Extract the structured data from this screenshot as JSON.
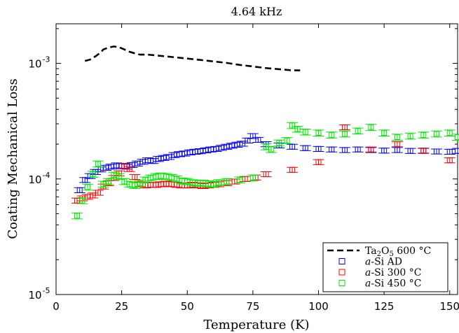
{
  "chart_data": {
    "type": "scatter",
    "title": "4.64 kHz",
    "xlabel": "Temperature (K)",
    "ylabel": "Coating Mechanical Loss",
    "xlim": [
      0,
      153
    ],
    "ylim": [
      1e-05,
      0.0022
    ],
    "yscale": "log",
    "grid": false,
    "legend_position": "bottom-right",
    "x_ticks": [
      0,
      25,
      50,
      75,
      100,
      125,
      150
    ],
    "x_tick_labels": [
      "0",
      "25",
      "50",
      "75",
      "100",
      "125",
      "150"
    ],
    "y_ticks": [
      1e-05,
      0.0001,
      0.001
    ],
    "y_tick_bases": [
      "10",
      "10",
      "10"
    ],
    "y_tick_exps": [
      "-5",
      "-4",
      "-3"
    ],
    "series": [
      {
        "name": "Ta2O5 600 °C",
        "name_parts": [
          "Ta",
          "2",
          "O",
          "5",
          " 600 °C"
        ],
        "kind": "dashed-line",
        "color": "#000000",
        "x": [
          11,
          13,
          15,
          17,
          18,
          20,
          22,
          24,
          26,
          28,
          30,
          32,
          35,
          40,
          45,
          50,
          55,
          60,
          65,
          70,
          75,
          80,
          85,
          90,
          93
        ],
        "y": [
          0.00105,
          0.00108,
          0.00115,
          0.00124,
          0.00132,
          0.00137,
          0.0014,
          0.00138,
          0.00132,
          0.00126,
          0.00122,
          0.00119,
          0.00119,
          0.00116,
          0.00113,
          0.0011,
          0.00107,
          0.00104,
          0.00101,
          0.00097,
          0.00094,
          0.00091,
          0.00089,
          0.00087,
          0.00087
        ]
      },
      {
        "name": "a-Si AD",
        "name_parts": [
          "a",
          "-Si AD"
        ],
        "kind": "markers",
        "color": "#0000ff",
        "x": [
          9,
          11,
          13,
          15,
          17,
          19,
          21,
          23,
          25,
          27,
          29,
          31,
          33,
          35,
          37,
          39,
          41,
          43,
          45,
          47,
          49,
          51,
          53,
          55,
          57,
          59,
          61,
          63,
          65,
          67,
          69,
          71,
          73,
          75,
          77,
          80,
          85,
          90,
          95,
          100,
          105,
          110,
          115,
          120,
          125,
          130,
          135,
          140,
          145,
          150,
          153
        ],
        "y": [
          8e-05,
          9.8e-05,
          0.000106,
          0.000115,
          0.000121,
          0.000125,
          0.000128,
          0.000131,
          0.000129,
          0.000128,
          0.000132,
          0.000136,
          0.000141,
          0.000145,
          0.000143,
          0.000149,
          0.000152,
          0.000155,
          0.000161,
          0.000164,
          0.000166,
          0.00017,
          0.000172,
          0.000174,
          0.000177,
          0.00018,
          0.000182,
          0.000186,
          0.00019,
          0.000194,
          0.000198,
          0.000202,
          0.000215,
          0.000235,
          0.000218,
          0.0002,
          0.000195,
          0.00019,
          0.000185,
          0.000182,
          0.00018,
          0.000178,
          0.00018,
          0.000178,
          0.000176,
          0.000178,
          0.000175,
          0.000176,
          0.000173,
          0.000172,
          0.000175
        ],
        "err": 0.05
      },
      {
        "name": "a-Si 300 °C",
        "name_parts": [
          "a",
          "-Si 300 °C"
        ],
        "kind": "markers",
        "color": "#ff0000",
        "x": [
          8,
          10,
          12,
          14,
          16,
          18,
          20,
          22,
          24,
          26,
          28,
          30,
          32,
          34,
          36,
          38,
          40,
          42,
          44,
          46,
          48,
          50,
          52,
          54,
          56,
          58,
          60,
          62,
          65,
          68,
          72,
          76,
          80,
          90,
          100,
          110,
          120,
          130,
          140,
          150
        ],
        "y": [
          6.5e-05,
          6.8e-05,
          7e-05,
          7.2e-05,
          7.6e-05,
          8.6e-05,
          9.2e-05,
          0.000102,
          0.000112,
          0.00013,
          0.000122,
          0.000104,
          9e-05,
          8.8e-05,
          8.9e-05,
          8.9e-05,
          9e-05,
          9.1e-05,
          9e-05,
          8.9e-05,
          8.8e-05,
          8.8e-05,
          8.9e-05,
          8.8e-05,
          8.7e-05,
          8.8e-05,
          8.9e-05,
          9e-05,
          9.2e-05,
          9.5e-05,
          0.0001,
          0.000103,
          0.00011,
          0.00012,
          0.00014,
          0.00028,
          0.00018,
          0.0002,
          0.000175,
          0.000145
        ],
        "err": 0.05
      },
      {
        "name": "a-Si 450 °C",
        "name_parts": [
          "a",
          "-Si 450 °C"
        ],
        "kind": "markers",
        "color": "#00ee00",
        "x": [
          8,
          10,
          12,
          14,
          16,
          18,
          20,
          22,
          24,
          26,
          28,
          30,
          32,
          34,
          36,
          38,
          40,
          42,
          44,
          46,
          48,
          50,
          52,
          54,
          56,
          58,
          60,
          62,
          65,
          70,
          75,
          80,
          82,
          85,
          88,
          90,
          92,
          95,
          100,
          105,
          110,
          115,
          120,
          125,
          130,
          135,
          140,
          145,
          150,
          153
        ],
        "y": [
          4.8e-05,
          6.5e-05,
          8.5e-05,
          0.00011,
          0.000135,
          9e-05,
          9.5e-05,
          0.000108,
          0.000105,
          9.5e-05,
          9e-05,
          8.8e-05,
          9.2e-05,
          9.8e-05,
          0.000102,
          0.000105,
          0.000106,
          0.000105,
          0.000103,
          0.0001,
          9.6e-05,
          9.5e-05,
          9.3e-05,
          9.2e-05,
          9.2e-05,
          9.1e-05,
          9e-05,
          9.3e-05,
          9.5e-05,
          9.8e-05,
          0.000102,
          0.00019,
          0.00018,
          0.000205,
          0.000215,
          0.00029,
          0.00027,
          0.000255,
          0.00025,
          0.00024,
          0.000245,
          0.00026,
          0.00028,
          0.00025,
          0.00023,
          0.000235,
          0.00024,
          0.000245,
          0.00025,
          0.00023
        ],
        "err": 0.06
      }
    ]
  }
}
